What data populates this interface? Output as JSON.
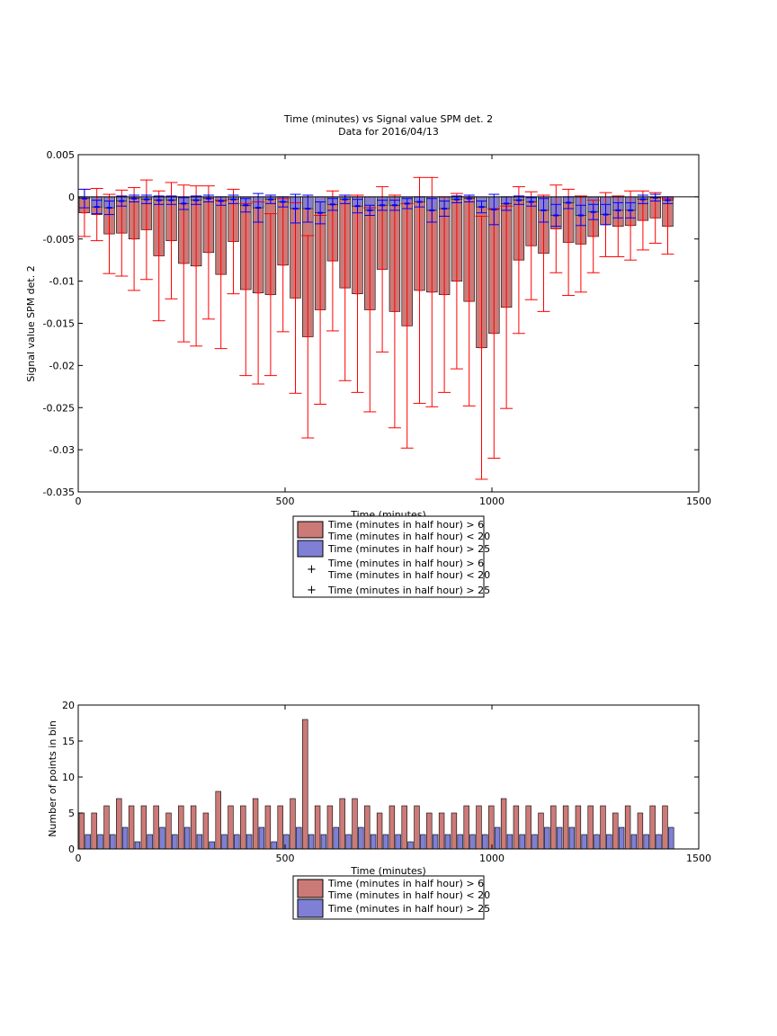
{
  "chart_data": [
    {
      "type": "bar",
      "title": "Time (minutes) vs Signal value SPM det. 2",
      "subtitle": "Data for 2016/04/13",
      "xlabel": "Time (minutes)",
      "ylabel": "Signal value SPM det. 2",
      "xlim": [
        0,
        1500
      ],
      "ylim": [
        -0.035,
        0.005
      ],
      "xticks": [
        0,
        500,
        1000,
        1500
      ],
      "xtick_labels": [
        "0",
        "500",
        "1000",
        "1500"
      ],
      "yticks": [
        0.005,
        0,
        -0.005,
        -0.01,
        -0.015,
        -0.02,
        -0.025,
        -0.03,
        -0.035
      ],
      "ytick_labels": [
        "0.005",
        "0",
        "-0.005",
        "-0.01",
        "-0.015",
        "-0.02",
        "-0.025",
        "-0.03",
        "-0.035"
      ],
      "grid": false,
      "legend_position": "bottom-center",
      "x": [
        15,
        45,
        75,
        105,
        135,
        165,
        195,
        225,
        255,
        285,
        315,
        345,
        375,
        405,
        435,
        465,
        495,
        525,
        555,
        585,
        615,
        645,
        675,
        705,
        735,
        765,
        795,
        825,
        855,
        885,
        915,
        945,
        975,
        1005,
        1035,
        1065,
        1095,
        1125,
        1155,
        1185,
        1215,
        1245,
        1275,
        1305,
        1335,
        1365,
        1395,
        1425
      ],
      "series": [
        {
          "name": "Time (minutes in half hour) > 6\nTime (minutes in half hour) < 20",
          "color": "#cc7a78",
          "values": [
            -0.0019,
            -0.0021,
            -0.0044,
            -0.0043,
            -0.005,
            -0.0039,
            -0.007,
            -0.0052,
            -0.0079,
            -0.0082,
            -0.0066,
            -0.0092,
            -0.0053,
            -0.011,
            -0.0114,
            -0.0116,
            -0.0081,
            -0.012,
            -0.0166,
            -0.0134,
            -0.0076,
            -0.0108,
            -0.0115,
            -0.0134,
            -0.0086,
            -0.0136,
            -0.0153,
            -0.0111,
            -0.0113,
            -0.0116,
            -0.01,
            -0.0124,
            -0.0179,
            -0.0162,
            -0.0131,
            -0.0075,
            -0.0058,
            -0.0067,
            -0.0038,
            -0.0054,
            -0.0056,
            -0.0047,
            -0.0033,
            -0.0035,
            -0.0034,
            -0.0028,
            -0.0025,
            -0.0035
          ],
          "errors": [
            0.0028,
            0.0031,
            0.0047,
            0.0051,
            0.0061,
            0.0059,
            0.0077,
            0.0069,
            0.0093,
            0.0095,
            0.0079,
            0.0088,
            0.0062,
            0.0102,
            0.0108,
            0.0096,
            0.0079,
            0.0113,
            0.012,
            0.0112,
            0.0083,
            0.011,
            0.0117,
            0.0121,
            0.0098,
            0.0138,
            0.0145,
            0.0134,
            0.0136,
            0.0116,
            0.0104,
            0.0124,
            0.0156,
            0.0148,
            0.012,
            0.0087,
            0.0064,
            0.0069,
            0.0052,
            0.0063,
            0.0057,
            0.0043,
            0.0038,
            0.0036,
            0.0041,
            0.0035,
            0.003,
            0.0033
          ]
        },
        {
          "name": "Time (minutes in half hour) > 25",
          "color": "#7f7fd5",
          "values": [
            -0.0002,
            -0.0012,
            -0.0013,
            -0.0005,
            -0.0002,
            -0.0003,
            -0.0004,
            -0.0004,
            -0.0008,
            -0.0004,
            -0.0002,
            -0.0005,
            -0.0003,
            -0.001,
            -0.0013,
            -0.0003,
            -0.0006,
            -0.0014,
            -0.0014,
            -0.0019,
            -0.0009,
            -0.0003,
            -0.0011,
            -0.0016,
            -0.001,
            -0.001,
            -0.0008,
            -0.0006,
            -0.0016,
            -0.0014,
            -0.0003,
            -0.0002,
            -0.0012,
            -0.0015,
            -0.0008,
            -0.0004,
            -0.0006,
            -0.0016,
            -0.0022,
            -0.0007,
            -0.0022,
            -0.0018,
            -0.0021,
            -0.0016,
            -0.0016,
            -0.0003,
            -0.0001,
            -0.0004
          ],
          "errors": [
            0.0011,
            0.0008,
            0.0008,
            0.0006,
            0.0004,
            0.0005,
            0.0005,
            0.0005,
            0.0007,
            0.0005,
            0.0004,
            0.0005,
            0.0005,
            0.0008,
            0.0017,
            0.0005,
            0.0006,
            0.0017,
            0.0016,
            0.0013,
            0.0007,
            0.0005,
            0.0008,
            0.0006,
            0.0006,
            0.0006,
            0.0006,
            0.0006,
            0.0014,
            0.0009,
            0.0004,
            0.0004,
            0.0007,
            0.0018,
            0.0008,
            0.0005,
            0.0005,
            0.0014,
            0.0013,
            0.0007,
            0.0012,
            0.0009,
            0.0012,
            0.0009,
            0.0009,
            0.0005,
            0.0004,
            0.0004
          ]
        }
      ],
      "legend": [
        {
          "label": "Time (minutes in half hour) > 6\nTime (minutes in half hour) < 20",
          "kind": "patch",
          "color": "#cc7a78"
        },
        {
          "label": "Time (minutes in half hour) > 25",
          "kind": "patch",
          "color": "#7f7fd5"
        },
        {
          "label": "Time (minutes in half hour) > 6\nTime (minutes in half hour) < 20",
          "kind": "marker",
          "color": "#ff0000"
        },
        {
          "label": "Time (minutes in half hour) > 25",
          "kind": "marker",
          "color": "#0000ff"
        }
      ]
    },
    {
      "type": "bar",
      "title": "",
      "xlabel": "Time (minutes)",
      "ylabel": "Number of points in bin",
      "xlim": [
        0,
        1500
      ],
      "ylim": [
        0,
        20
      ],
      "xticks": [
        0,
        500,
        1000,
        1500
      ],
      "xtick_labels": [
        "0",
        "500",
        "1000",
        "1500"
      ],
      "yticks": [
        20,
        15,
        10,
        5,
        0
      ],
      "ytick_labels": [
        "20",
        "15",
        "10",
        "5",
        "0"
      ],
      "grid": false,
      "legend_position": "bottom-center",
      "x": [
        15,
        45,
        75,
        105,
        135,
        165,
        195,
        225,
        255,
        285,
        315,
        345,
        375,
        405,
        435,
        465,
        495,
        525,
        555,
        585,
        615,
        645,
        675,
        705,
        735,
        765,
        795,
        825,
        855,
        885,
        915,
        945,
        975,
        1005,
        1035,
        1065,
        1095,
        1125,
        1155,
        1185,
        1215,
        1245,
        1275,
        1305,
        1335,
        1365,
        1395,
        1425
      ],
      "series": [
        {
          "name": "Time (minutes in half hour) > 6\nTime (minutes in half hour) < 20",
          "color": "#cc7a78",
          "values": [
            5,
            5,
            6,
            7,
            6,
            6,
            6,
            5,
            6,
            6,
            5,
            8,
            6,
            6,
            7,
            6,
            6,
            7,
            18,
            6,
            6,
            7,
            7,
            6,
            5,
            6,
            6,
            6,
            5,
            5,
            5,
            6,
            6,
            6,
            7,
            6,
            6,
            5,
            6,
            6,
            6,
            6,
            6,
            5,
            6,
            5,
            6,
            6
          ]
        },
        {
          "name": "Time (minutes in half hour) > 25",
          "color": "#7f7fd5",
          "values": [
            2,
            2,
            2,
            3,
            1,
            2,
            3,
            2,
            3,
            2,
            1,
            2,
            2,
            2,
            3,
            1,
            2,
            3,
            2,
            2,
            3,
            2,
            3,
            2,
            2,
            2,
            1,
            2,
            2,
            2,
            2,
            2,
            2,
            3,
            2,
            2,
            2,
            3,
            3,
            3,
            2,
            2,
            2,
            3,
            2,
            2,
            2,
            3
          ]
        }
      ],
      "legend": [
        {
          "label": "Time (minutes in half hour) > 6\nTime (minutes in half hour) < 20",
          "kind": "patch",
          "color": "#cc7a78"
        },
        {
          "label": "Time (minutes in half hour) > 25",
          "kind": "patch",
          "color": "#7f7fd5"
        }
      ]
    }
  ]
}
